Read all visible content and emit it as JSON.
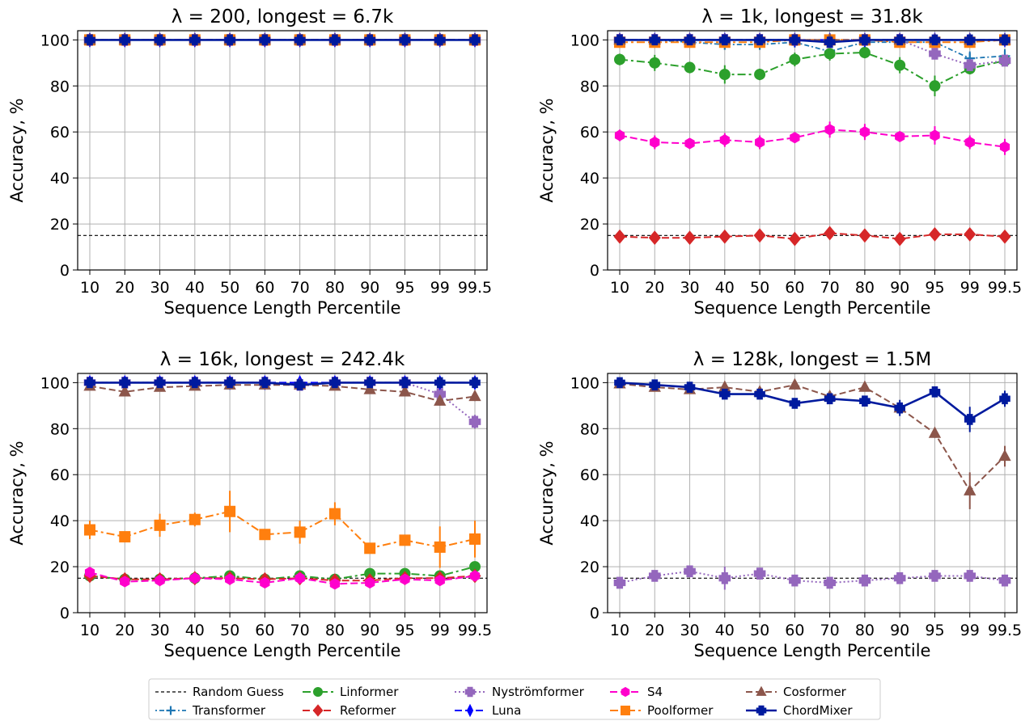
{
  "colors": {
    "Random Guess": "#000000",
    "Transformer": "#1f77b4",
    "Linformer": "#2ca02c",
    "Reformer": "#d62728",
    "Nyströmformer": "#9467bd",
    "Luna": "#0000ff",
    "S4": "#ff00cc",
    "Poolformer": "#ff7f0e",
    "Cosformer": "#8c564b",
    "ChordMixer": "#001a9e"
  },
  "legend": {
    "entries": [
      "Random Guess",
      "Transformer",
      "Linformer",
      "Reformer",
      "Nyströmformer",
      "Luna",
      "S4",
      "Poolformer",
      "Cosformer",
      "ChordMixer"
    ],
    "placement": "bottom-center",
    "columns": 5
  },
  "chart_data": [
    {
      "type": "line",
      "title": "λ = 200, longest = 6.7k",
      "xlabel": "Sequence Length Percentile",
      "ylabel": "Accuracy, %",
      "categories": [
        "10",
        "20",
        "30",
        "40",
        "50",
        "60",
        "70",
        "80",
        "90",
        "95",
        "99",
        "99.5"
      ],
      "ylim": [
        0,
        104
      ],
      "yticks": [
        0,
        20,
        40,
        60,
        80,
        100
      ],
      "grid": true,
      "random_guess": 15,
      "series": [
        {
          "name": "Transformer",
          "values": [
            100,
            100,
            100,
            100,
            100,
            100,
            100,
            100,
            100,
            100,
            100,
            100
          ]
        },
        {
          "name": "Linformer",
          "values": [
            100,
            100,
            100,
            100,
            100,
            100,
            100,
            100,
            100,
            100,
            100,
            100
          ]
        },
        {
          "name": "Reformer",
          "values": [
            100,
            100,
            100,
            100,
            100,
            100,
            100,
            100,
            100,
            100,
            100,
            100
          ]
        },
        {
          "name": "Nyströmformer",
          "values": [
            100,
            100,
            100,
            100,
            100,
            100,
            100,
            100,
            100,
            100,
            100,
            100
          ]
        },
        {
          "name": "Luna",
          "values": [
            100,
            100,
            100,
            100,
            100,
            100,
            100,
            100,
            100,
            100,
            100,
            100
          ]
        },
        {
          "name": "S4",
          "values": [
            100,
            100,
            100,
            100,
            100,
            100,
            100,
            100,
            100,
            100,
            100,
            100
          ]
        },
        {
          "name": "Poolformer",
          "values": [
            100,
            100,
            100,
            100,
            100,
            100,
            100,
            100,
            100,
            100,
            100,
            100
          ]
        },
        {
          "name": "Cosformer",
          "values": [
            100,
            100,
            100,
            100,
            100,
            100,
            100,
            100,
            100,
            100,
            100,
            100
          ]
        },
        {
          "name": "ChordMixer",
          "values": [
            100,
            100,
            100,
            100,
            100,
            100,
            100,
            100,
            100,
            100,
            100,
            100
          ]
        }
      ]
    },
    {
      "type": "line",
      "title": "λ = 1k, longest = 31.8k",
      "xlabel": "Sequence Length Percentile",
      "ylabel": "Accuracy, %",
      "categories": [
        "10",
        "20",
        "30",
        "40",
        "50",
        "60",
        "70",
        "80",
        "90",
        "95",
        "99",
        "99.5"
      ],
      "ylim": [
        0,
        104
      ],
      "yticks": [
        0,
        20,
        40,
        60,
        80,
        100
      ],
      "grid": true,
      "random_guess": 15,
      "series": [
        {
          "name": "Transformer",
          "values": [
            100,
            100,
            99,
            98,
            98,
            99,
            95,
            99,
            99,
            99,
            92,
            93
          ],
          "err": [
            1,
            1,
            1,
            1,
            1,
            1,
            2,
            1,
            1,
            1,
            3,
            3
          ]
        },
        {
          "name": "Linformer",
          "values": [
            91.5,
            90,
            88,
            85,
            85,
            91.5,
            94,
            94.5,
            89,
            80,
            87.5,
            91
          ],
          "err": [
            2.5,
            3.5,
            2.5,
            4,
            2.5,
            3,
            3,
            2.5,
            3.5,
            4.5,
            2.5,
            2
          ]
        },
        {
          "name": "Reformer",
          "values": [
            14.5,
            14,
            14,
            14.5,
            15,
            13.5,
            16,
            15,
            13.5,
            15.5,
            15.5,
            14.5
          ],
          "err": [
            1,
            1,
            1,
            1,
            1,
            1,
            1,
            1,
            1,
            1,
            1,
            1
          ]
        },
        {
          "name": "Nyströmformer",
          "values": [
            100,
            100,
            100,
            100,
            100,
            100,
            99,
            100,
            100,
            94,
            89,
            91
          ],
          "err": [
            1,
            1,
            1,
            1,
            1,
            1,
            1,
            1,
            1,
            1.5,
            2,
            2
          ]
        },
        {
          "name": "Luna",
          "values": [
            100,
            100,
            100,
            100,
            100,
            100,
            100,
            100,
            100,
            100,
            100,
            100
          ]
        },
        {
          "name": "S4",
          "values": [
            58.5,
            55.5,
            55,
            56.5,
            55.5,
            57.5,
            61,
            60,
            58,
            58.5,
            55.5,
            53.5
          ],
          "err": [
            2.5,
            3,
            1.5,
            3,
            3,
            2,
            3.5,
            3.5,
            2,
            4,
            3,
            3.5
          ]
        },
        {
          "name": "Poolformer",
          "values": [
            99,
            99,
            99,
            99,
            99,
            100,
            100,
            100,
            99,
            99,
            99,
            100
          ],
          "err": [
            1,
            1,
            1,
            1,
            1,
            1,
            1,
            1,
            1,
            1,
            1,
            1
          ]
        },
        {
          "name": "Cosformer",
          "values": [
            100,
            100,
            100,
            100,
            100,
            100,
            100,
            100,
            100,
            100,
            100,
            100
          ]
        },
        {
          "name": "ChordMixer",
          "values": [
            100,
            100,
            100,
            100,
            100,
            100,
            99,
            100,
            100,
            100,
            100,
            100
          ],
          "err": [
            1,
            1,
            1,
            1,
            1,
            1,
            1,
            1,
            1,
            1,
            1,
            1
          ]
        }
      ]
    },
    {
      "type": "line",
      "title": "λ = 16k, longest = 242.4k",
      "xlabel": "Sequence Length Percentile",
      "ylabel": "Accuracy, %",
      "categories": [
        "10",
        "20",
        "30",
        "40",
        "50",
        "60",
        "70",
        "80",
        "90",
        "95",
        "99",
        "99.5"
      ],
      "ylim": [
        0,
        104
      ],
      "yticks": [
        0,
        20,
        40,
        60,
        80,
        100
      ],
      "grid": true,
      "random_guess": 15,
      "series": [
        {
          "name": "Transformer",
          "values": [
            100,
            100,
            100,
            100,
            100,
            100,
            99,
            100,
            100,
            100,
            100,
            100
          ]
        },
        {
          "name": "Linformer",
          "values": [
            16,
            14.5,
            14.5,
            15,
            16,
            14.5,
            16,
            14.5,
            17,
            17,
            16,
            20
          ],
          "err": [
            1,
            1,
            1,
            1,
            1,
            1,
            1,
            1,
            1,
            1,
            1,
            1.5
          ]
        },
        {
          "name": "Reformer",
          "values": [
            16,
            14.5,
            14.5,
            15,
            15,
            14.5,
            15,
            14,
            14,
            15,
            15,
            16
          ]
        },
        {
          "name": "Nyströmformer",
          "values": [
            100,
            100,
            100,
            100,
            100,
            100,
            99,
            100,
            100,
            100,
            95,
            83
          ],
          "err": [
            1,
            1,
            1,
            1,
            1,
            1,
            1,
            1,
            1,
            1,
            2,
            3
          ]
        },
        {
          "name": "Luna",
          "values": [
            100,
            100,
            100,
            100,
            100,
            100,
            100,
            100,
            100,
            100,
            100,
            100
          ]
        },
        {
          "name": "S4",
          "values": [
            17.5,
            13.5,
            14,
            15,
            14.5,
            13,
            15,
            12.5,
            13,
            14.5,
            14,
            16
          ],
          "err": [
            1.5,
            1.5,
            1,
            1,
            1,
            1,
            1,
            1,
            1,
            1,
            1,
            1
          ]
        },
        {
          "name": "Poolformer",
          "values": [
            36,
            33,
            38,
            40.5,
            44,
            34,
            35,
            43,
            28,
            31.5,
            28.5,
            32
          ],
          "err": [
            4,
            1.5,
            5,
            3,
            9,
            1.5,
            5,
            5,
            1.5,
            1.5,
            9,
            8
          ]
        },
        {
          "name": "Cosformer",
          "values": [
            98.5,
            96,
            98,
            98.5,
            99,
            99,
            99,
            98.5,
            97,
            96,
            92,
            94
          ],
          "err": [
            1,
            1,
            1,
            1,
            1,
            1,
            1,
            1,
            1,
            1,
            2,
            2
          ]
        },
        {
          "name": "ChordMixer",
          "values": [
            100,
            100,
            100,
            100,
            100,
            100,
            99,
            100,
            100,
            100,
            100,
            100
          ],
          "err": [
            1,
            1,
            1,
            1,
            1,
            1,
            1,
            1,
            1,
            1,
            1,
            1
          ]
        }
      ]
    },
    {
      "type": "line",
      "title": "λ = 128k, longest = 1.5M",
      "xlabel": "Sequence Length Percentile",
      "ylabel": "Accuracy, %",
      "categories": [
        "10",
        "20",
        "30",
        "40",
        "50",
        "60",
        "70",
        "80",
        "90",
        "95",
        "99",
        "99.5"
      ],
      "ylim": [
        0,
        104
      ],
      "yticks": [
        0,
        20,
        40,
        60,
        80,
        100
      ],
      "grid": true,
      "random_guess": 15,
      "series": [
        {
          "name": "Nyströmformer",
          "values": [
            13,
            16,
            18,
            15,
            17,
            14,
            13,
            14,
            15,
            16,
            16,
            14
          ],
          "err": [
            1,
            2,
            2,
            5,
            2,
            1,
            1,
            1.5,
            1,
            1,
            2.5,
            2.5
          ]
        },
        {
          "name": "Cosformer",
          "values": [
            99.5,
            98,
            97,
            98,
            96,
            99,
            94,
            98,
            89,
            78,
            53,
            68
          ],
          "err": [
            1,
            1,
            1,
            1,
            1,
            1,
            1,
            1,
            1.5,
            2,
            8,
            4.5
          ]
        },
        {
          "name": "ChordMixer",
          "values": [
            100,
            99,
            98,
            95,
            95,
            91,
            93,
            92,
            89,
            96,
            84,
            93
          ],
          "err": [
            1.5,
            1.5,
            1.5,
            2,
            1.5,
            1.5,
            1.5,
            1.5,
            3.5,
            1.5,
            5.5,
            3.5
          ]
        }
      ]
    }
  ]
}
